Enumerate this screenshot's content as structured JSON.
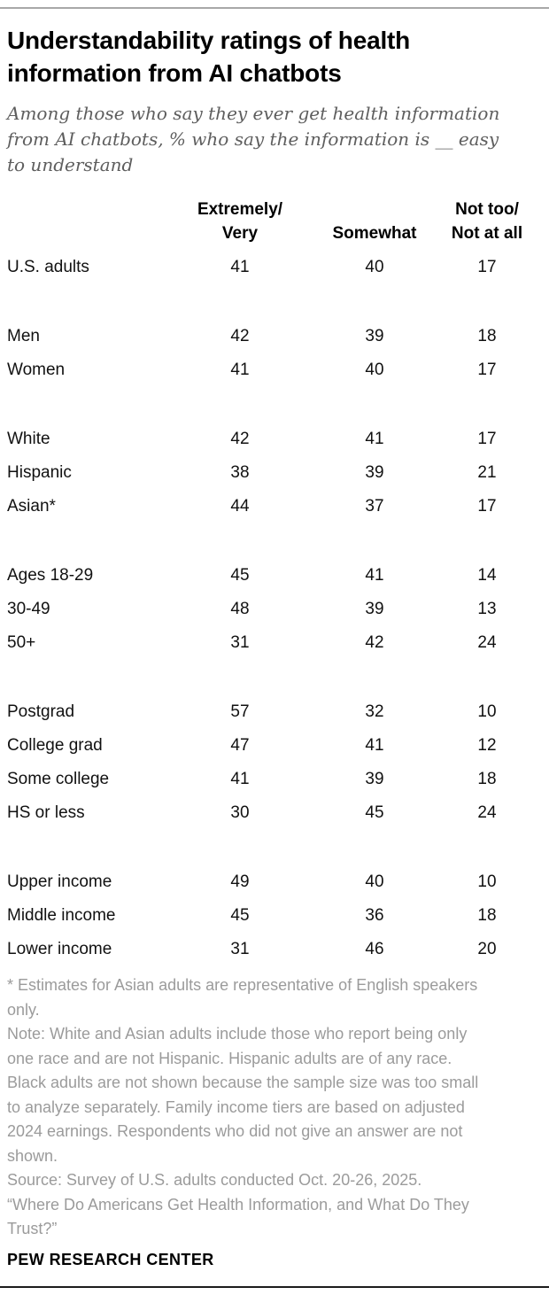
{
  "header": {
    "title_lines": [
      "Understandability ratings of health",
      "information from AI chatbots"
    ],
    "subtitle_lines": [
      "Among those who say they ever get health information",
      "from AI chatbots, % who say the information is __ easy",
      "to understand"
    ]
  },
  "chart_data": {
    "type": "table",
    "title": "Understandability ratings of health information from AI chatbots",
    "subtitle": "Among those who say they ever get health information from AI chatbots, % who say the information is __ easy to understand",
    "values_unit": "%",
    "columns": [
      "Extremely/Very",
      "Somewhat",
      "Not too/Not at all"
    ],
    "groups": [
      {
        "rows": [
          {
            "label": "U.S. adults",
            "values": [
              41,
              40,
              17
            ]
          }
        ]
      },
      {
        "rows": [
          {
            "label": "Men",
            "values": [
              42,
              39,
              18
            ]
          },
          {
            "label": "Women",
            "values": [
              41,
              40,
              17
            ]
          }
        ]
      },
      {
        "rows": [
          {
            "label": "White",
            "values": [
              42,
              41,
              17
            ]
          },
          {
            "label": "Hispanic",
            "values": [
              38,
              39,
              21
            ]
          },
          {
            "label": "Asian*",
            "values": [
              44,
              37,
              17
            ]
          }
        ]
      },
      {
        "rows": [
          {
            "label": "Ages 18-29",
            "values": [
              45,
              41,
              14
            ]
          },
          {
            "label": "30-49",
            "values": [
              48,
              39,
              13
            ]
          },
          {
            "label": "50+",
            "values": [
              31,
              42,
              24
            ]
          }
        ]
      },
      {
        "rows": [
          {
            "label": "Postgrad",
            "values": [
              57,
              32,
              10
            ]
          },
          {
            "label": "College grad",
            "values": [
              47,
              41,
              12
            ]
          },
          {
            "label": "Some college",
            "values": [
              41,
              39,
              18
            ]
          },
          {
            "label": "HS or less",
            "values": [
              30,
              45,
              24
            ]
          }
        ]
      },
      {
        "rows": [
          {
            "label": "Upper income",
            "values": [
              49,
              40,
              10
            ]
          },
          {
            "label": "Middle income",
            "values": [
              45,
              36,
              18
            ]
          },
          {
            "label": "Lower income",
            "values": [
              31,
              46,
              20
            ]
          }
        ]
      }
    ]
  },
  "table": {
    "col_headers": [
      [
        "Extremely/",
        "Very"
      ],
      [
        "",
        "Somewhat"
      ],
      [
        "Not too/",
        "Not at all"
      ]
    ]
  },
  "footnotes": {
    "lines": [
      "* Estimates for Asian adults are representative of English speakers",
      "only.",
      "Note: White and Asian adults include those who report being only",
      "one race and are not Hispanic. Hispanic adults are of any race.",
      "Black adults are not shown because the sample size was too small",
      "to analyze separately. Family income tiers are based on adjusted",
      "2024 earnings. Respondents who did not give an answer are not",
      "shown.",
      "Source: Survey of U.S. adults conducted Oct. 20-26, 2025.",
      "“Where Do Americans Get Health Information, and What Do They",
      "Trust?”"
    ]
  },
  "footer": {
    "brand": "PEW RESEARCH CENTER"
  }
}
